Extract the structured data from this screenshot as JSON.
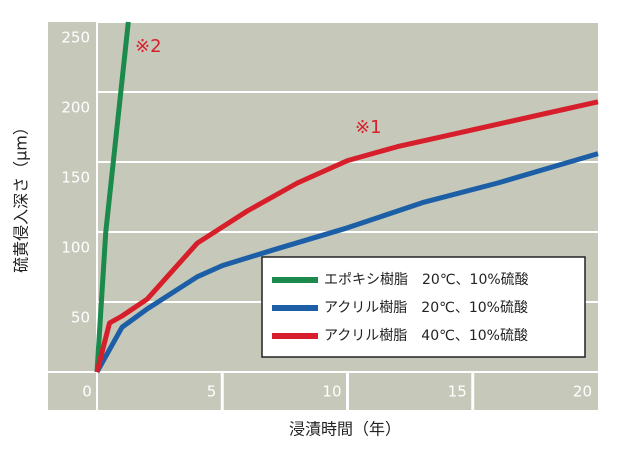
{
  "chart_data": {
    "type": "line",
    "ylabel": "硫黄侵入深さ（μm）",
    "xlabel": "浸漬時間（年）",
    "annotations": [
      "※1",
      "※2"
    ],
    "xlim": [
      0,
      20
    ],
    "xticks": [
      0,
      5,
      10,
      15,
      20
    ],
    "ylim": [
      0,
      250
    ],
    "yticks": [
      50,
      100,
      150,
      200,
      250
    ],
    "grid": true,
    "series": [
      {
        "name": "エポキシ樹脂　20℃、10%硫酸",
        "color": "#1b8a4c",
        "x": [
          0,
          0.35,
          1.25
        ],
        "values": [
          0,
          100,
          250
        ]
      },
      {
        "name": "アクリル樹脂　20℃、10%硫酸",
        "color": "#1c5fa6",
        "x": [
          0,
          1,
          2,
          4,
          5,
          7,
          10,
          13,
          16,
          20
        ],
        "values": [
          0,
          32,
          45,
          68,
          76,
          87,
          103,
          121,
          135,
          156
        ]
      },
      {
        "name": "アクリル樹脂　40℃、10%硫酸",
        "color": "#d71f2b",
        "x": [
          0,
          0.5,
          1,
          2,
          4,
          6,
          8,
          10,
          12,
          14,
          16,
          18,
          20
        ],
        "values": [
          0,
          35,
          40,
          52,
          92,
          115,
          135,
          151,
          161,
          169,
          177,
          185,
          193
        ]
      }
    ]
  }
}
